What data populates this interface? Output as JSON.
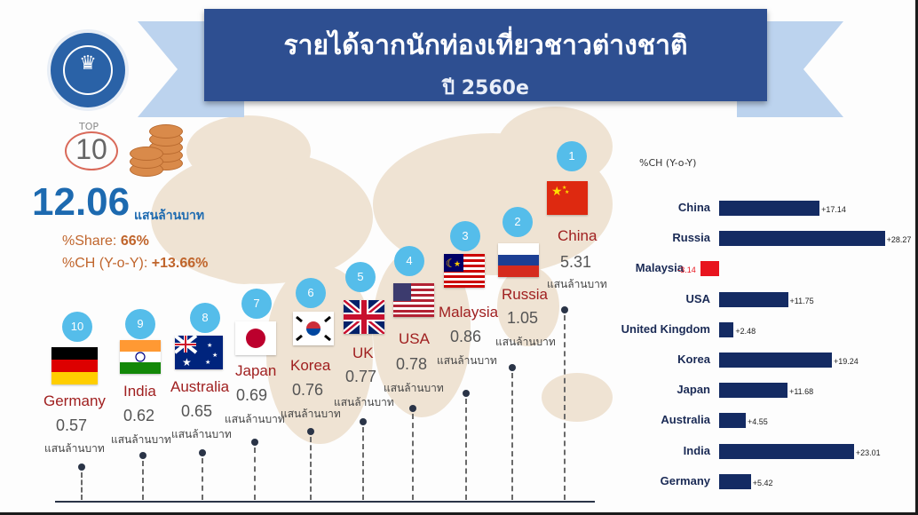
{
  "title": {
    "main": "รายได้จากนักท่องเที่ยวชาวต่างชาติ",
    "sub": "ปี 2560e"
  },
  "summary": {
    "top_label": "TOP",
    "top_number": "10",
    "total_value": "12.06",
    "total_unit": "แสนล้านบาท",
    "share_label": "%Share: ",
    "share_value": "66%",
    "ch_label": "%CH (Y-o-Y): ",
    "ch_value": "+13.66%"
  },
  "colors": {
    "title_bg": "#2e4f91",
    "bar_positive": "#142b63",
    "bar_negative": "#e8141e",
    "badge": "#55bdea",
    "country_name": "#a02020"
  },
  "countries": [
    {
      "rank": "1",
      "name": "China",
      "value": "5.31",
      "unit": "แสนล้านบาท",
      "flag": "china-flag"
    },
    {
      "rank": "2",
      "name": "Russia",
      "value": "1.05",
      "unit": "แสนล้านบาท",
      "flag": "russia-flag"
    },
    {
      "rank": "3",
      "name": "Malaysia",
      "value": "0.86",
      "unit": "แสนล้านบาท",
      "flag": "malaysia-flag"
    },
    {
      "rank": "4",
      "name": "USA",
      "value": "0.78",
      "unit": "แสนล้านบาท",
      "flag": "usa-flag"
    },
    {
      "rank": "5",
      "name": "UK",
      "value": "0.77",
      "unit": "แสนล้านบาท",
      "flag": "uk-flag"
    },
    {
      "rank": "6",
      "name": "Korea",
      "value": "0.76",
      "unit": "แสนล้านบาท",
      "flag": "korea-flag"
    },
    {
      "rank": "7",
      "name": "Japan",
      "value": "0.69",
      "unit": "แสนล้านบาท",
      "flag": "japan-flag"
    },
    {
      "rank": "8",
      "name": "Australia",
      "value": "0.65",
      "unit": "แสนล้านบาท",
      "flag": "australia-flag"
    },
    {
      "rank": "9",
      "name": "India",
      "value": "0.62",
      "unit": "แสนล้านบาท",
      "flag": "india-flag"
    },
    {
      "rank": "10",
      "name": "Germany",
      "value": "0.57",
      "unit": "แสนล้านบาท",
      "flag": "germany-flag"
    }
  ],
  "chart_data": {
    "type": "bar",
    "orientation": "horizontal",
    "title": "%CH (Y-o-Y)",
    "categories": [
      "China",
      "Russia",
      "Malaysia",
      "USA",
      "United Kingdom",
      "Korea",
      "Japan",
      "Australia",
      "India",
      "Germany"
    ],
    "values": [
      17.14,
      28.27,
      -3.14,
      11.75,
      2.48,
      19.24,
      11.68,
      4.55,
      23.01,
      5.42
    ],
    "labels": [
      "+17.14",
      "+28.27",
      "-3.14",
      "+11.75",
      "+2.48",
      "+19.24",
      "+11.68",
      "+4.55",
      "+23.01",
      "+5.42"
    ],
    "xlim": [
      -3.14,
      28.27
    ],
    "grid": false,
    "legend": "none"
  }
}
